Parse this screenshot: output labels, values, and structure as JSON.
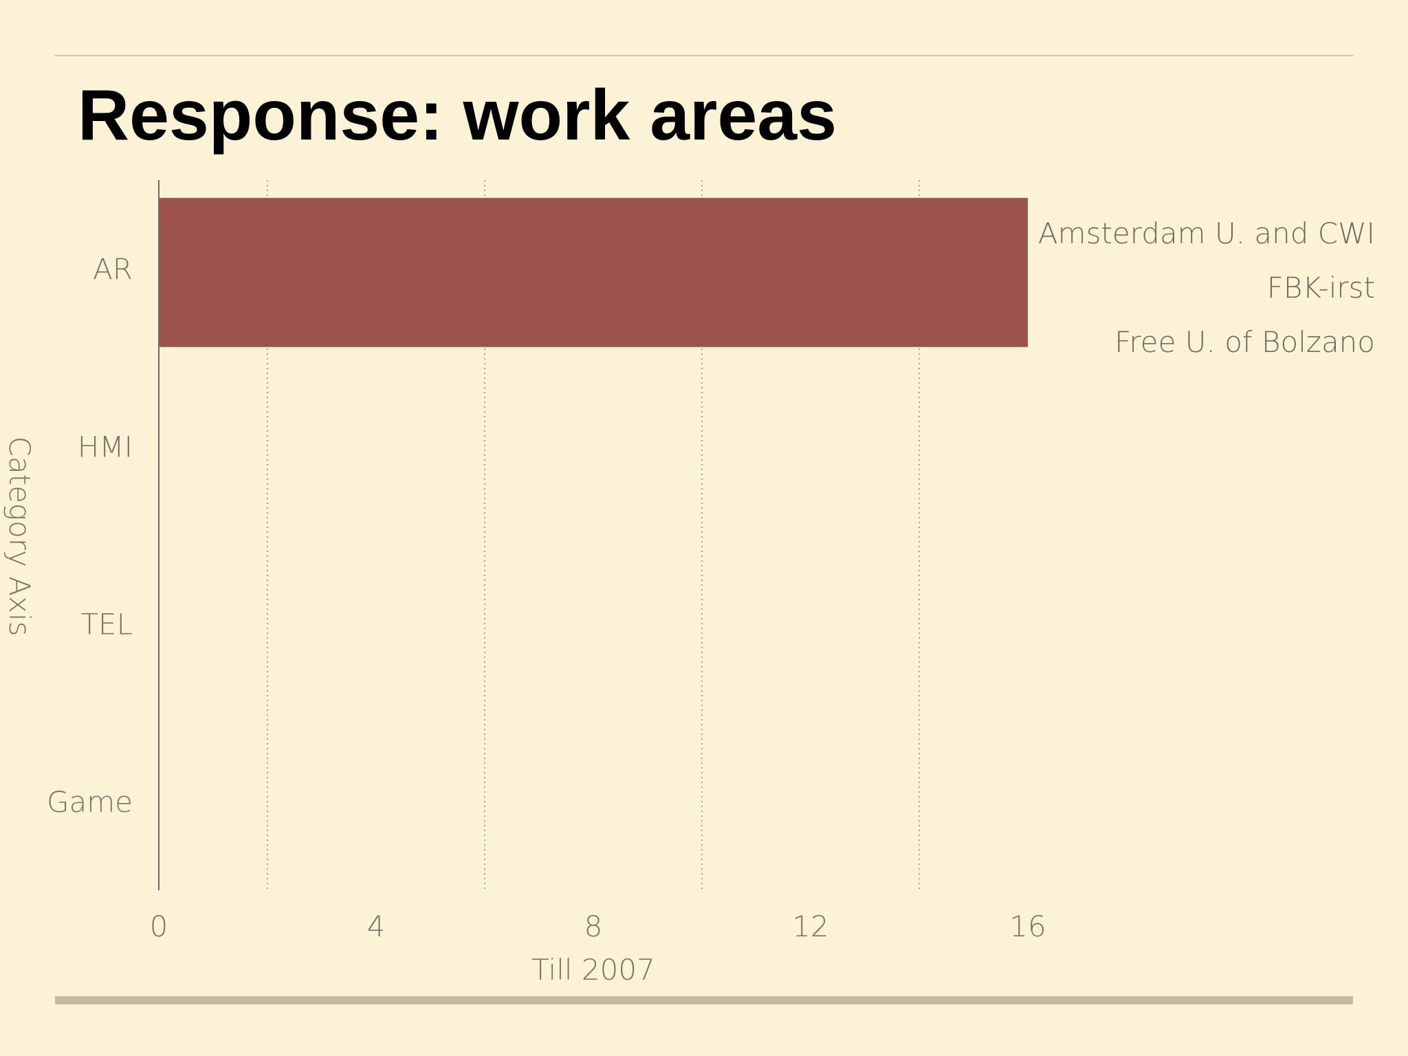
{
  "slide": {
    "title": "Response: work areas"
  },
  "chart_data": {
    "type": "bar",
    "orientation": "horizontal",
    "categories": [
      "AR",
      "HMI",
      "TEL",
      "Game"
    ],
    "series": [
      {
        "name": "Amsterdam U. and CWI",
        "values": [
          16,
          0,
          0,
          0
        ]
      },
      {
        "name": "FBK-irst",
        "values": [
          0,
          0,
          0,
          0
        ]
      },
      {
        "name": "Free U. of Bolzano",
        "values": [
          0,
          0,
          0,
          0
        ]
      }
    ],
    "xlabel": "Till 2007",
    "ylabel": "Category Axis",
    "xlim": [
      0,
      20
    ],
    "xticks": [
      0,
      4,
      8,
      12,
      16
    ],
    "grid": true,
    "legend_position": "top-right",
    "colors": {
      "bar": "#9c534c",
      "axis": "#6b6b6b",
      "grid": "#a9a28d",
      "tick_text": "#77736a",
      "background": "#fcf3d6"
    }
  }
}
